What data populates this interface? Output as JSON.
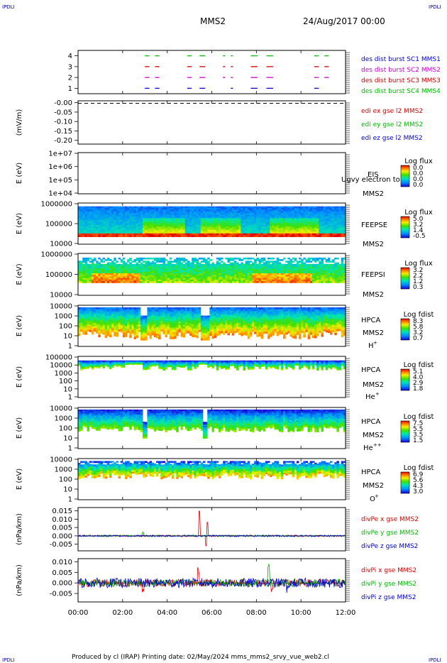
{
  "header": {
    "corner_left": "IPDLI",
    "corner_right": "IPDLI",
    "title": "MMS2",
    "date": "24/Aug/2017 00:00",
    "footer": "Produced by cl (IRAP)   Printing date: 02/May/2024   mms_mms2_srvy_vue_web2.cl",
    "bottom_left": "IPDLI",
    "bottom_right": "IPDLI"
  },
  "chart_data": {
    "type": "heatmap",
    "x_ticks": [
      "00:00",
      "02:00",
      "04:00",
      "06:00",
      "08:00",
      "10:00",
      "12:00"
    ],
    "xlim_hours": [
      0,
      12
    ],
    "panels": [
      {
        "id": "burst",
        "type": "scatter",
        "ylim": [
          0.5,
          4.5
        ],
        "y_ticks": [
          "1",
          "2",
          "3",
          "4"
        ],
        "legend": [
          {
            "text": "des dist burst SC1 MMS1",
            "color": "#0000cc"
          },
          {
            "text": "des dist burst SC2 MMS2",
            "color": "#cc00cc"
          },
          {
            "text": "des dist burst SC3 MMS3",
            "color": "#cc0000"
          },
          {
            "text": "des dist burst SC4 MMS4",
            "color": "#00bb00"
          }
        ],
        "intervals": [
          [
            3.0,
            3.2
          ],
          [
            3.45,
            3.65
          ],
          [
            4.9,
            5.1
          ],
          [
            5.45,
            5.7
          ],
          [
            6.5,
            6.6
          ],
          [
            6.85,
            6.95
          ],
          [
            7.75,
            8.05
          ],
          [
            8.45,
            8.75
          ],
          [
            10.6,
            10.8
          ],
          [
            11.05,
            11.25
          ]
        ]
      },
      {
        "id": "edi",
        "type": "line",
        "ylabel": "(mV/m)",
        "ylim": [
          -0.22,
          0.01
        ],
        "y_ticks": [
          "-0.00",
          "-0.05",
          "-0.10",
          "-0.15",
          "-0.20"
        ],
        "y_tick_values": [
          0,
          -0.05,
          -0.1,
          -0.15,
          -0.2
        ],
        "series_value": -0.003,
        "legend": [
          {
            "text": "edi ex gse l2 MMS2",
            "color": "#dd0000"
          },
          {
            "text": "edi ey gse l2 MMS2",
            "color": "#00bb00"
          },
          {
            "text": "edi ez gse l2 MMS2",
            "color": "#0000cc"
          }
        ]
      },
      {
        "id": "eis",
        "ylabel": "E (eV)",
        "y_ticks": [
          "1e+07",
          "1e+06",
          "1e+05",
          "1e+04"
        ],
        "instrument": "EIS",
        "instrument_overlay": "Ugvy electron to",
        "spacecraft": "MMS2",
        "cbar_title": "Log flux",
        "cbar_ticks": [
          "0.0",
          "0.0",
          "0.0",
          "0.0"
        ]
      },
      {
        "id": "feepse",
        "ylabel": "E (eV)",
        "y_ticks": [
          "1000000",
          "100000",
          "10000"
        ],
        "instrument": "FEEPSE",
        "spacecraft": "MMS2",
        "cbar_title": "Log flux",
        "cbar_ticks": [
          "5.0",
          "3.2",
          "1.4",
          "-0.5"
        ]
      },
      {
        "id": "feepsi",
        "ylabel": "E (eV)",
        "y_ticks": [
          "1000000",
          "100000",
          "10000"
        ],
        "instrument": "FEEPSI",
        "spacecraft": "MMS2",
        "cbar_title": "Log flux",
        "cbar_ticks": [
          "3.2",
          "2.2",
          "1.2",
          "0.3"
        ]
      },
      {
        "id": "hpca_h",
        "ylabel": "E (eV)",
        "y_ticks": [
          "10000",
          "1000",
          "100",
          "10",
          "1"
        ],
        "instrument": "HPCA",
        "spacecraft": "MMS2",
        "species": "H",
        "charge": "+",
        "cbar_title": "Log fdist",
        "cbar_ticks": [
          "8.3",
          "5.8",
          "3.2",
          "0.7"
        ]
      },
      {
        "id": "hpca_he",
        "ylabel": "E (eV)",
        "y_ticks": [
          "100000",
          "10000",
          "1000",
          "100",
          "10",
          "1"
        ],
        "instrument": "HPCA",
        "spacecraft": "MMS2",
        "species": "He",
        "charge": "+",
        "cbar_title": "Log fdist",
        "cbar_ticks": [
          "5.1",
          "4.0",
          "2.9",
          "1.8"
        ]
      },
      {
        "id": "hpca_hepp",
        "ylabel": "E (eV)",
        "y_ticks": [
          "10000",
          "1000",
          "100",
          "10",
          "1"
        ],
        "instrument": "HPCA",
        "spacecraft": "MMS2",
        "species": "He",
        "charge": "++",
        "cbar_title": "Log fdist",
        "cbar_ticks": [
          "7.5",
          "5.5",
          "3.5",
          "1.5"
        ]
      },
      {
        "id": "hpca_o",
        "ylabel": "E (eV)",
        "y_ticks": [
          "10000",
          "1000",
          "100",
          "10",
          "1"
        ],
        "instrument": "HPCA",
        "spacecraft": "MMS2",
        "species": "O",
        "charge": "+",
        "cbar_title": "Log fdist",
        "cbar_ticks": [
          "6.9",
          "5.6",
          "4.3",
          "3.0"
        ]
      },
      {
        "id": "divpe",
        "type": "line",
        "ylabel": "(nPa/km)",
        "ylim": [
          -0.009,
          0.017
        ],
        "y_ticks": [
          "0.015",
          "0.010",
          "0.005",
          "0.000",
          "-0.005"
        ],
        "y_tick_values": [
          0.015,
          0.01,
          0.005,
          0.0,
          -0.005
        ],
        "legend": [
          {
            "text": "divPe x gse MMS2",
            "color": "#dd0000"
          },
          {
            "text": "divPe y gse MMS2",
            "color": "#00bb00"
          },
          {
            "text": "divPe z gse MMS2",
            "color": "#0000cc"
          }
        ]
      },
      {
        "id": "divpi",
        "type": "line",
        "ylabel": "(nPa/km)",
        "ylim": [
          -0.009,
          0.0115
        ],
        "y_ticks": [
          "0.010",
          "0.005",
          "0.000",
          "-0.005"
        ],
        "y_tick_values": [
          0.01,
          0.005,
          0.0,
          -0.005
        ],
        "legend": [
          {
            "text": "divPi x gse MMS2",
            "color": "#dd0000"
          },
          {
            "text": "divPi y gse MMS2",
            "color": "#00bb00"
          },
          {
            "text": "divPi z gse MMS2",
            "color": "#0000cc"
          }
        ]
      }
    ]
  }
}
